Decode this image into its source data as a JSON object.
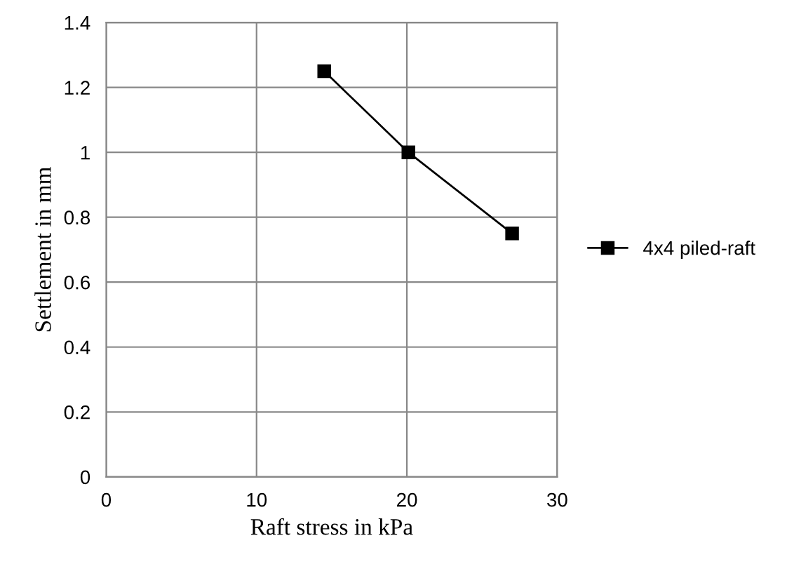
{
  "chart_data": {
    "type": "line",
    "xlabel": "Raft stress in kPa",
    "ylabel": "Settlement in mm",
    "x": [
      14.5,
      20.1,
      27
    ],
    "series": [
      {
        "name": "4x4 piled-raft",
        "color": "#000000",
        "values": [
          1.25,
          1.0,
          0.75
        ]
      }
    ],
    "xlim": [
      0,
      30
    ],
    "xticks": [
      0,
      10,
      20,
      30
    ],
    "ylim": [
      0,
      1.4
    ],
    "yticks": [
      0,
      0.2,
      0.4,
      0.6,
      0.8,
      1,
      1.2,
      1.4
    ],
    "grid": true,
    "legend": "right",
    "marker": "square",
    "line_style": "solid"
  }
}
